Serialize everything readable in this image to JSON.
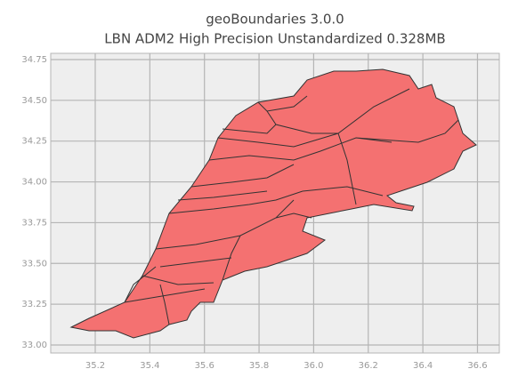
{
  "chart_data": {
    "type": "map",
    "title": "geoBoundaries 3.0.0",
    "subtitle": "LBN ADM2 High Precision Unstandardized 0.328MB",
    "xlim": [
      35.037,
      36.68
    ],
    "ylim": [
      32.951,
      34.788
    ],
    "xticks": [
      35.2,
      35.4,
      35.6,
      35.8,
      {
        "value": 36,
        "label": "36.0"
      },
      36.2,
      36.4,
      36.6
    ],
    "yticks": [
      {
        "value": 33,
        "label": "33.00"
      },
      33.25,
      {
        "value": 33.5,
        "label": "33.50"
      },
      33.75,
      {
        "value": 34,
        "label": "34.00"
      },
      34.25,
      {
        "value": 34.5,
        "label": "34.50"
      },
      34.75
    ],
    "grid": true,
    "color": "#f47171"
  }
}
